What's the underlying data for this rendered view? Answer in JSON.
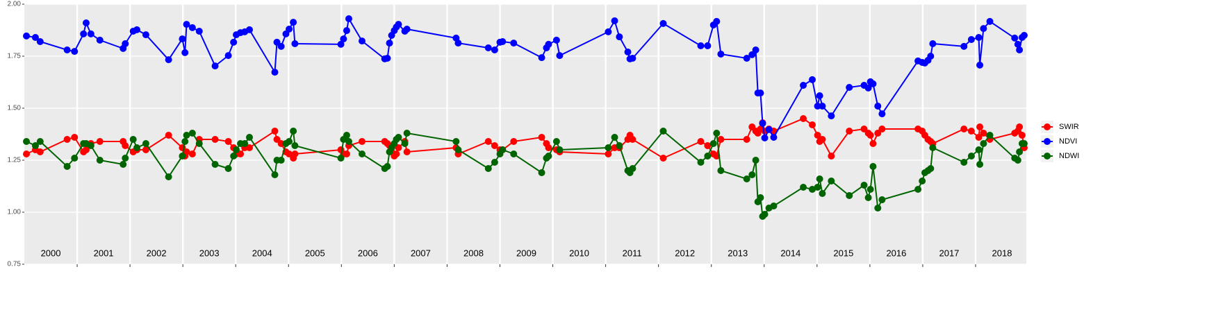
{
  "chart_data": {
    "type": "line",
    "x": [
      2000.04,
      2000.21,
      2000.3,
      2000.81,
      2000.95,
      2001.12,
      2001.17,
      2001.26,
      2001.43,
      2001.87,
      2001.91,
      2002.06,
      2002.13,
      2002.3,
      2002.73,
      2002.99,
      2003.04,
      2003.07,
      2003.18,
      2003.31,
      2003.61,
      2003.86,
      2003.96,
      2004.01,
      2004.09,
      2004.17,
      2004.26,
      2004.74,
      2004.78,
      2004.86,
      2004.95,
      2005.01,
      2005.09,
      2005.12,
      2005.99,
      2006.04,
      2006.1,
      2006.14,
      2006.39,
      2006.82,
      2006.87,
      2006.91,
      2006.95,
      2007.0,
      2007.04,
      2007.08,
      2007.2,
      2007.24,
      2008.17,
      2008.21,
      2008.78,
      2008.9,
      2009.0,
      2009.05,
      2009.26,
      2009.79,
      2009.88,
      2009.92,
      2010.07,
      2010.13,
      2011.05,
      2011.17,
      2011.26,
      2011.42,
      2011.46,
      2011.51,
      2012.09,
      2012.8,
      2012.93,
      2013.04,
      2013.1,
      2013.18,
      2013.67,
      2013.77,
      2013.84,
      2013.88,
      2013.93,
      2013.97,
      2014.01,
      2014.09,
      2014.18,
      2014.74,
      2014.91,
      2015.01,
      2015.05,
      2015.1,
      2015.27,
      2015.61,
      2015.89,
      2015.97,
      2016.01,
      2016.06,
      2016.15,
      2016.23,
      2016.91,
      2016.99,
      2017.04,
      2017.1,
      2017.15,
      2017.19,
      2017.78,
      2017.92,
      2018.06,
      2018.08,
      2018.15,
      2018.27,
      2018.74,
      2018.8,
      2018.83,
      2018.88,
      2018.92
    ],
    "series": [
      {
        "name": "SWIR",
        "color": "#ff0000",
        "values": [
          1.28,
          1.3,
          1.29,
          1.35,
          1.36,
          1.29,
          1.3,
          1.33,
          1.34,
          1.34,
          1.32,
          1.29,
          1.3,
          1.3,
          1.37,
          1.31,
          1.27,
          1.29,
          1.28,
          1.35,
          1.35,
          1.34,
          1.31,
          1.28,
          1.28,
          1.31,
          1.31,
          1.39,
          1.35,
          1.33,
          1.29,
          1.28,
          1.26,
          1.28,
          1.3,
          1.28,
          1.28,
          1.32,
          1.34,
          1.34,
          1.33,
          1.32,
          1.29,
          1.27,
          1.28,
          1.31,
          1.34,
          1.29,
          1.31,
          1.28,
          1.34,
          1.32,
          1.3,
          1.3,
          1.34,
          1.36,
          1.33,
          1.31,
          1.3,
          1.29,
          1.28,
          1.31,
          1.31,
          1.35,
          1.37,
          1.35,
          1.26,
          1.34,
          1.32,
          1.28,
          1.27,
          1.35,
          1.35,
          1.41,
          1.39,
          1.38,
          1.4,
          1.43,
          1.39,
          1.4,
          1.39,
          1.45,
          1.42,
          1.37,
          1.34,
          1.35,
          1.27,
          1.39,
          1.4,
          1.38,
          1.37,
          1.33,
          1.38,
          1.4,
          1.4,
          1.39,
          1.37,
          1.35,
          1.34,
          1.33,
          1.4,
          1.39,
          1.36,
          1.41,
          1.38,
          1.35,
          1.38,
          1.39,
          1.41,
          1.37,
          1.31
        ]
      },
      {
        "name": "NDVI",
        "color": "#0000ff",
        "values": [
          1.847,
          1.84,
          1.82,
          1.78,
          1.773,
          1.857,
          1.91,
          1.857,
          1.827,
          1.787,
          1.81,
          1.87,
          1.877,
          1.853,
          1.733,
          1.833,
          1.767,
          1.903,
          1.887,
          1.87,
          1.703,
          1.753,
          1.817,
          1.853,
          1.863,
          1.867,
          1.877,
          1.673,
          1.817,
          1.797,
          1.857,
          1.88,
          1.913,
          1.81,
          1.807,
          1.833,
          1.873,
          1.93,
          1.823,
          1.737,
          1.74,
          1.813,
          1.85,
          1.873,
          1.89,
          1.903,
          1.87,
          1.88,
          1.837,
          1.813,
          1.79,
          1.78,
          1.817,
          1.82,
          1.813,
          1.743,
          1.79,
          1.807,
          1.827,
          1.753,
          1.867,
          1.92,
          1.843,
          1.77,
          1.737,
          1.74,
          1.907,
          1.8,
          1.8,
          1.9,
          1.917,
          1.76,
          1.74,
          1.757,
          1.78,
          1.573,
          1.573,
          1.427,
          1.357,
          1.397,
          1.36,
          1.61,
          1.637,
          1.51,
          1.56,
          1.51,
          1.463,
          1.6,
          1.61,
          1.597,
          1.627,
          1.617,
          1.51,
          1.473,
          1.727,
          1.72,
          1.717,
          1.73,
          1.75,
          1.81,
          1.797,
          1.83,
          1.84,
          1.707,
          1.883,
          1.917,
          1.837,
          1.807,
          1.78,
          1.84,
          1.85
        ]
      },
      {
        "name": "NDWI",
        "color": "#006400",
        "values": [
          1.34,
          1.32,
          1.34,
          1.22,
          1.26,
          1.33,
          1.33,
          1.32,
          1.25,
          1.23,
          1.26,
          1.35,
          1.31,
          1.33,
          1.17,
          1.27,
          1.34,
          1.37,
          1.38,
          1.33,
          1.23,
          1.21,
          1.27,
          1.3,
          1.33,
          1.33,
          1.36,
          1.18,
          1.25,
          1.25,
          1.33,
          1.34,
          1.39,
          1.32,
          1.26,
          1.35,
          1.37,
          1.34,
          1.28,
          1.21,
          1.22,
          1.29,
          1.31,
          1.33,
          1.35,
          1.36,
          1.33,
          1.38,
          1.34,
          1.3,
          1.21,
          1.24,
          1.28,
          1.3,
          1.28,
          1.19,
          1.26,
          1.27,
          1.34,
          1.3,
          1.31,
          1.36,
          1.32,
          1.2,
          1.19,
          1.21,
          1.39,
          1.24,
          1.27,
          1.33,
          1.38,
          1.2,
          1.16,
          1.18,
          1.25,
          1.05,
          1.07,
          0.98,
          0.99,
          1.02,
          1.03,
          1.12,
          1.11,
          1.12,
          1.16,
          1.09,
          1.15,
          1.08,
          1.13,
          1.07,
          1.11,
          1.22,
          1.02,
          1.06,
          1.11,
          1.15,
          1.19,
          1.2,
          1.21,
          1.31,
          1.24,
          1.27,
          1.3,
          1.23,
          1.33,
          1.37,
          1.26,
          1.25,
          1.29,
          1.33,
          1.33
        ]
      }
    ],
    "xlim": [
      2000,
      2018.96
    ],
    "xticks": [
      2001,
      2002,
      2003,
      2004,
      2005,
      2006,
      2007,
      2008,
      2009,
      2010,
      2011,
      2012,
      2013,
      2014,
      2015,
      2016,
      2017,
      2018
    ],
    "year_labels": [
      2000,
      2001,
      2002,
      2003,
      2004,
      2005,
      2006,
      2007,
      2008,
      2009,
      2010,
      2011,
      2012,
      2013,
      2014,
      2015,
      2016,
      2017,
      2018
    ],
    "ylim": [
      0.75,
      2.0
    ],
    "yticks": [
      {
        "value": 0.75,
        "label": "0.75"
      },
      {
        "value": 1.0,
        "label": "1.00"
      },
      {
        "value": 1.25,
        "label": "1.25"
      },
      {
        "value": 1.5,
        "label": "1.50"
      },
      {
        "value": 1.75,
        "label": "1.75"
      },
      {
        "value": 2.0,
        "label": "2.00"
      }
    ],
    "grid": true,
    "legend": "right"
  }
}
